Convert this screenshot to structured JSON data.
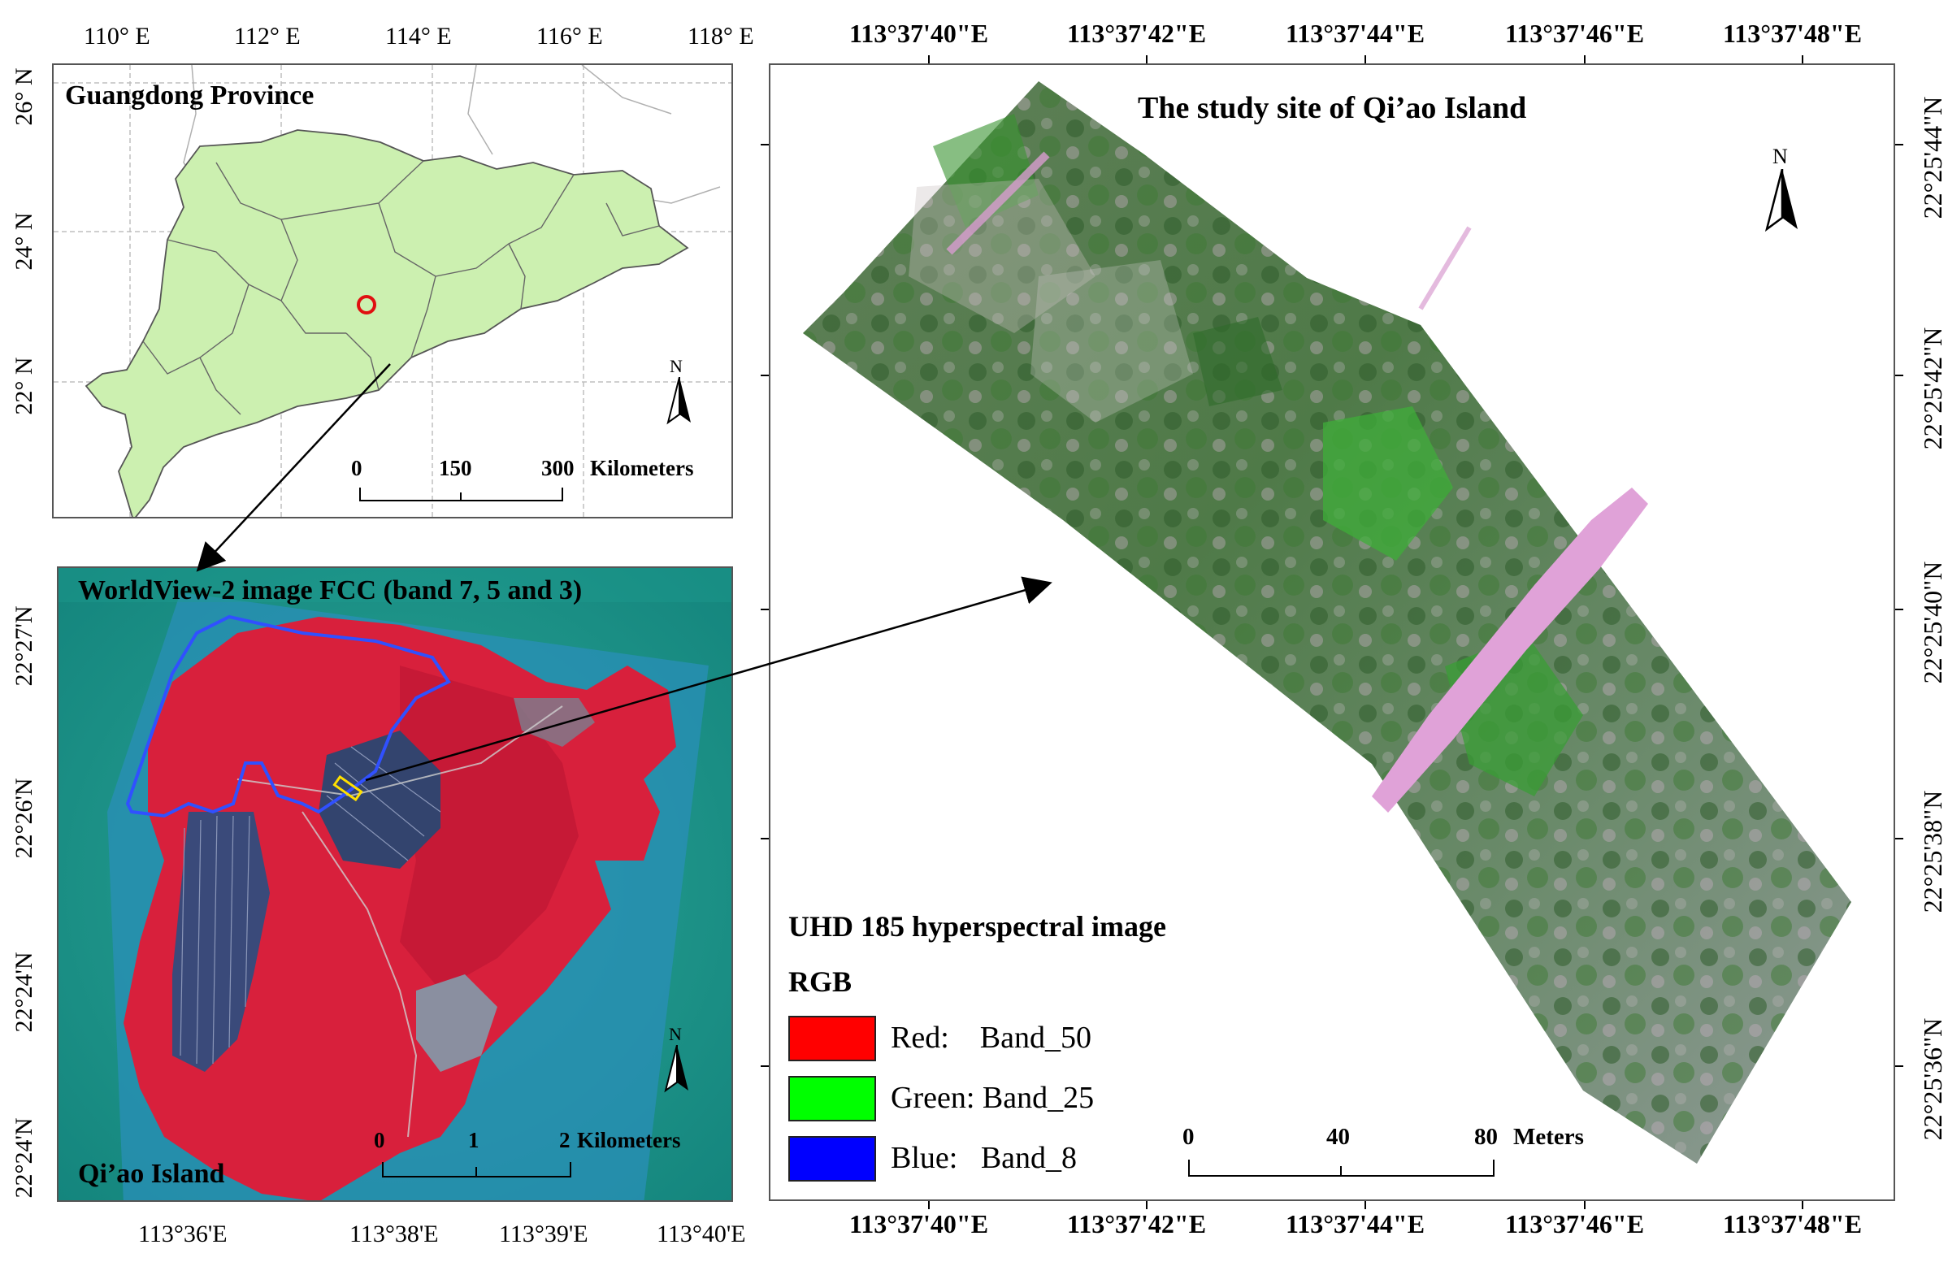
{
  "top_left_map": {
    "title": "Guangdong Province",
    "lon_labels": [
      "110° E",
      "112° E",
      "114° E",
      "116° E",
      "118° E"
    ],
    "lat_labels": [
      "26° N",
      "24° N",
      "22° N"
    ],
    "scalebar": {
      "ticks": [
        "0",
        "150",
        "300"
      ],
      "unit": "Kilometers"
    },
    "north_label": "N",
    "colors": {
      "province_fill": "#ccf0b0",
      "boundary": "#555555",
      "marker": "#e01010"
    }
  },
  "bottom_left_map": {
    "title": "WorldView-2 image FCC (band 7, 5 and 3)",
    "place_label": "Qi’ao Island",
    "lon_labels": [
      "113°36'E",
      "113°38'E",
      "113°39'E",
      "113°40'E"
    ],
    "lat_labels": [
      "22°27'N",
      "22°26'N",
      "22°24'N",
      "22°24'N"
    ],
    "scalebar": {
      "ticks": [
        "0",
        "1",
        "2"
      ],
      "unit": "Kilometers"
    },
    "north_label": "N",
    "colors": {
      "sea": "#1f9a8e",
      "vegetation": "#d8203c",
      "outline": "#3050ff",
      "site": "#ffe000"
    }
  },
  "right_map": {
    "title": "The study site of Qi’ao Island",
    "lon_labels": [
      "113°37'40\"E",
      "113°37'42\"E",
      "113°37'44\"E",
      "113°37'46\"E",
      "113°37'48\"E"
    ],
    "lat_labels": [
      "22°25'44\"N",
      "22°25'42\"N",
      "22°25'40\"N",
      "22°25'38\"N",
      "22°25'36\"N"
    ],
    "legend": {
      "title": "UHD 185 hyperspectral image",
      "subtitle": "RGB",
      "items": [
        {
          "label": "Red:    Band_50",
          "color": "#ff0000"
        },
        {
          "label": "Green: Band_25",
          "color": "#00ff00"
        },
        {
          "label": "Blue:   Band_8",
          "color": "#0000ff"
        }
      ]
    },
    "scalebar": {
      "ticks": [
        "0",
        "40",
        "80"
      ],
      "unit": "Meters"
    },
    "north_label": "N"
  }
}
